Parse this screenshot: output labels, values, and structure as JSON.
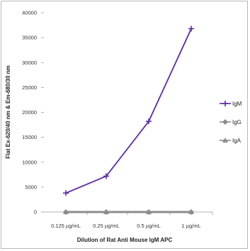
{
  "chart_data": {
    "type": "line",
    "title": "",
    "xlabel": "Dilution of Rat Anti Mouse IgM APC",
    "ylabel": "Flat Ex-620/40 nm & Em-680/30 nm",
    "categories": [
      "0.125 µg/mL",
      "0.25 µg/mL",
      "0.5 µg/mL",
      "1 µg/mL"
    ],
    "ylim": [
      0,
      40000
    ],
    "yticks": [
      "0",
      "5000",
      "10000",
      "15000",
      "20000",
      "25000",
      "30000",
      "35000",
      "40000"
    ],
    "grid": false,
    "legend_position": "right",
    "series": [
      {
        "name": "IgM",
        "values": [
          3800,
          7200,
          18200,
          36800
        ],
        "color": "#5b2aa8",
        "marker": "plus"
      },
      {
        "name": "IgG",
        "values": [
          0,
          0,
          0,
          0
        ],
        "color": "#8c8c8c",
        "marker": "diamond"
      },
      {
        "name": "IgA",
        "values": [
          0,
          0,
          0,
          0
        ],
        "color": "#8c8c8c",
        "marker": "triangle"
      }
    ]
  }
}
